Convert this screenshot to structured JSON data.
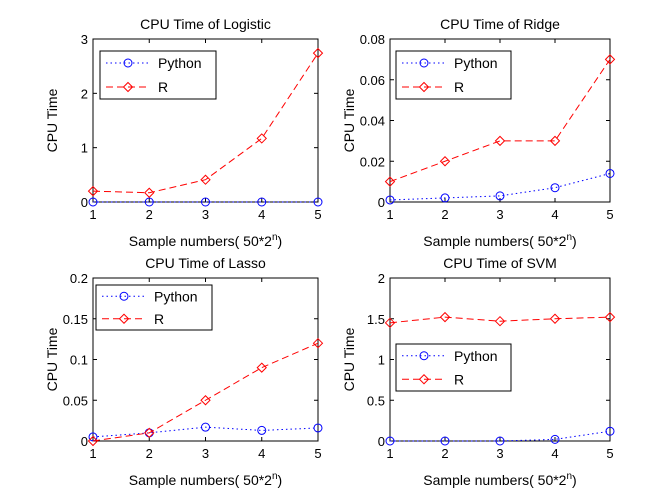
{
  "chart_data": [
    {
      "type": "line",
      "title": "CPU Time of Logistic",
      "xlabel_prefix": "Sample numbers( 50*2",
      "xlabel_sup": "n",
      "xlabel_suffix": ")",
      "ylabel": "CPU Time",
      "x": [
        1,
        2,
        3,
        4,
        5
      ],
      "xlim": [
        1,
        5
      ],
      "ylim": [
        0,
        3
      ],
      "xticks": [
        "1",
        "2",
        "3",
        "4",
        "5"
      ],
      "yticks": [
        0,
        1,
        2,
        3
      ],
      "ytick_labels": [
        "0",
        "1",
        "2",
        "3"
      ],
      "grid": false,
      "legend_position": "top-left",
      "series": [
        {
          "name": "Python",
          "values": [
            0.0,
            0.0,
            0.0,
            0.0,
            0.0
          ],
          "color": "#0000ff",
          "marker": "circle",
          "style": "dotted"
        },
        {
          "name": "R",
          "values": [
            0.2,
            0.17,
            0.41,
            1.17,
            2.74
          ],
          "color": "#ff0000",
          "marker": "diamond",
          "style": "dashed"
        }
      ]
    },
    {
      "type": "line",
      "title": "CPU Time of Ridge",
      "xlabel_prefix": "Sample numbers( 50*2",
      "xlabel_sup": "n",
      "xlabel_suffix": ")",
      "ylabel": "CPU Time",
      "x": [
        1,
        2,
        3,
        4,
        5
      ],
      "xlim": [
        1,
        5
      ],
      "ylim": [
        0,
        0.08
      ],
      "xticks": [
        "1",
        "2",
        "3",
        "4",
        "5"
      ],
      "yticks": [
        0,
        0.02,
        0.04,
        0.06,
        0.08
      ],
      "ytick_labels": [
        "0",
        "0.02",
        "0.04",
        "0.06",
        "0.08"
      ],
      "grid": false,
      "legend_position": "top-left",
      "series": [
        {
          "name": "Python",
          "values": [
            0.001,
            0.002,
            0.003,
            0.007,
            0.014
          ],
          "color": "#0000ff",
          "marker": "circle",
          "style": "dotted"
        },
        {
          "name": "R",
          "values": [
            0.01,
            0.02,
            0.03,
            0.03,
            0.07
          ],
          "color": "#ff0000",
          "marker": "diamond",
          "style": "dashed"
        }
      ]
    },
    {
      "type": "line",
      "title": "CPU Time of Lasso",
      "xlabel_prefix": "Sample numbers( 50*2",
      "xlabel_sup": "n",
      "xlabel_suffix": ")",
      "ylabel": "CPU Time",
      "x": [
        1,
        2,
        3,
        4,
        5
      ],
      "xlim": [
        1,
        5
      ],
      "ylim": [
        0,
        0.2
      ],
      "xticks": [
        "1",
        "2",
        "3",
        "4",
        "5"
      ],
      "yticks": [
        0,
        0.05,
        0.1,
        0.15,
        0.2
      ],
      "ytick_labels": [
        "0",
        "0.05",
        "0.1",
        "0.15",
        "0.2"
      ],
      "grid": false,
      "legend_position": "top-left",
      "series": [
        {
          "name": "Python",
          "values": [
            0.005,
            0.01,
            0.017,
            0.013,
            0.016
          ],
          "color": "#0000ff",
          "marker": "circle",
          "style": "dotted"
        },
        {
          "name": "R",
          "values": [
            0.0,
            0.01,
            0.05,
            0.09,
            0.12
          ],
          "color": "#ff0000",
          "marker": "diamond",
          "style": "dashed"
        }
      ]
    },
    {
      "type": "line",
      "title": "CPU Time of SVM",
      "xlabel_prefix": "Sample numbers( 50*2",
      "xlabel_sup": "n",
      "xlabel_suffix": ")",
      "ylabel": "CPU Time",
      "x": [
        1,
        2,
        3,
        4,
        5
      ],
      "xlim": [
        1,
        5
      ],
      "ylim": [
        0,
        2
      ],
      "xticks": [
        "1",
        "2",
        "3",
        "4",
        "5"
      ],
      "yticks": [
        0,
        0.5,
        1,
        1.5,
        2
      ],
      "ytick_labels": [
        "0",
        "0.5",
        "1",
        "1.5",
        "2"
      ],
      "grid": false,
      "legend_position": "middle-left",
      "series": [
        {
          "name": "Python",
          "values": [
            0.0,
            0.0,
            0.0,
            0.02,
            0.12
          ],
          "color": "#0000ff",
          "marker": "circle",
          "style": "dotted"
        },
        {
          "name": "R",
          "values": [
            1.45,
            1.52,
            1.47,
            1.5,
            1.52
          ],
          "color": "#ff0000",
          "marker": "diamond",
          "style": "dashed"
        }
      ]
    }
  ]
}
